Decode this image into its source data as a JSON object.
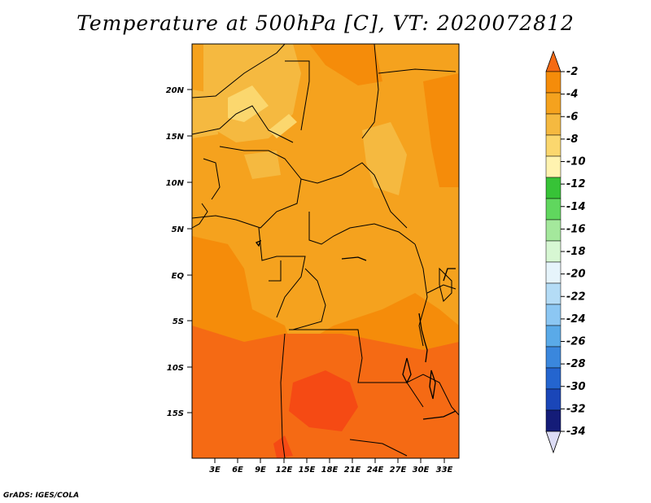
{
  "title": "Temperature at 500hPa [C], VT: 2020072812",
  "credit": "GrADS: IGES/COLA",
  "map": {
    "region": "Central Africa",
    "lon_range": [
      0,
      35
    ],
    "lat_range": [
      -20,
      25
    ],
    "lat_ticks": [
      {
        "label": "20N"
      },
      {
        "label": "15N"
      },
      {
        "label": "10N"
      },
      {
        "label": "5N"
      },
      {
        "label": "EQ"
      },
      {
        "label": "5S"
      },
      {
        "label": "10S"
      },
      {
        "label": "15S"
      }
    ],
    "lon_ticks": [
      {
        "label": "3E"
      },
      {
        "label": "6E"
      },
      {
        "label": "9E"
      },
      {
        "label": "12E"
      },
      {
        "label": "15E"
      },
      {
        "label": "18E"
      },
      {
        "label": "21E"
      },
      {
        "label": "24E"
      },
      {
        "label": "27E"
      },
      {
        "label": "30E"
      },
      {
        "label": "33E"
      }
    ]
  },
  "colorbar": {
    "labels": [
      "-2",
      "-4",
      "-6",
      "-8",
      "-10",
      "-12",
      "-14",
      "-16",
      "-18",
      "-20",
      "-22",
      "-24",
      "-26",
      "-28",
      "-30",
      "-32",
      "-34"
    ],
    "colors": [
      "#f56a14",
      "#f58c0a",
      "#f5a21e",
      "#f5b940",
      "#fbd76e",
      "#fff3b0",
      "#37c337",
      "#60d75e",
      "#a4e89c",
      "#d7f7d3",
      "#e6f4fb",
      "#b4dcf6",
      "#8cc7f3",
      "#5aaae8",
      "#3a87dd",
      "#2465cf",
      "#1a46b8",
      "#141c78",
      "#dcdcf5"
    ]
  },
  "colors": {
    "bg": "#f5a21e",
    "warm1": "#f58c0a",
    "warm2": "#f56a14",
    "warm3": "#f54a14",
    "cool1": "#f5b940",
    "cool2": "#fbd76e"
  }
}
